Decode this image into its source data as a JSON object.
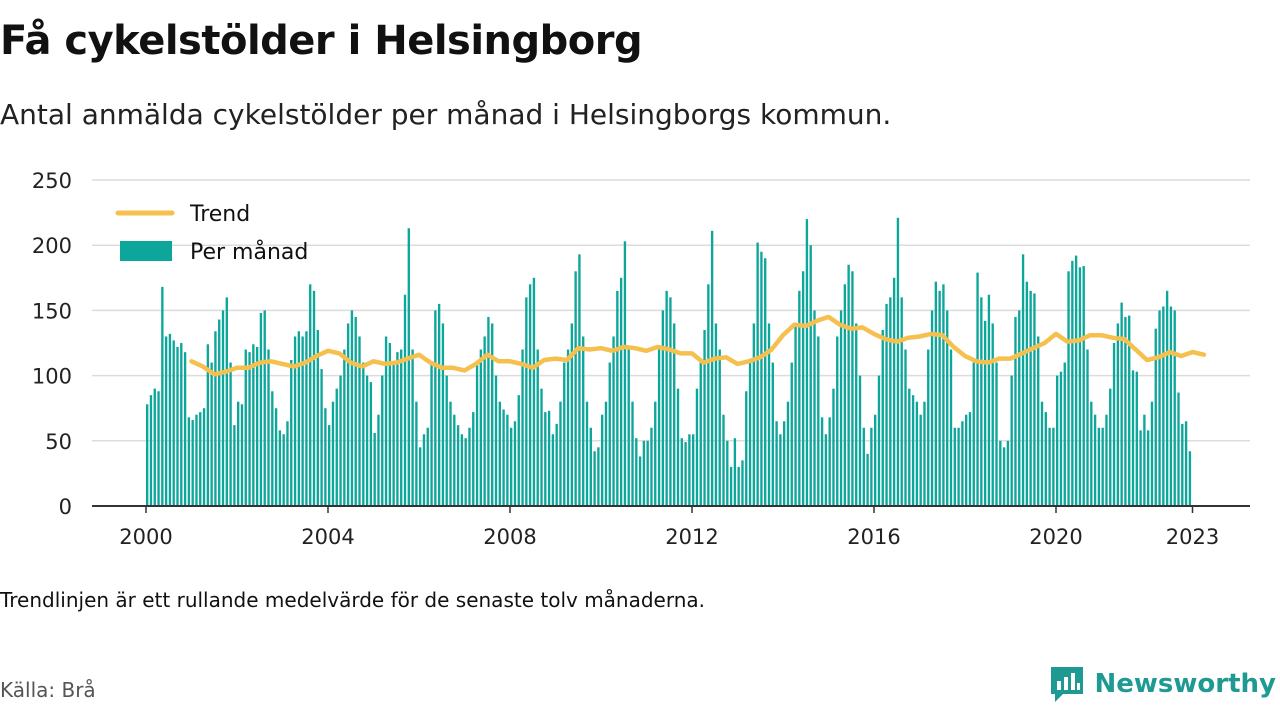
{
  "title": "Få cykelstölder i Helsingborg",
  "subtitle": "Antal anmälda cykelstölder per månad i Helsingborgs kommun.",
  "note": "Trendlinjen är ett rullande medelvärde för de senaste tolv månaderna.",
  "source": "Källa: Brå",
  "brand": {
    "name": "Newsworthy",
    "icon": "newsworthy-logo-icon"
  },
  "colors": {
    "bars": "#0ca69b",
    "trend": "#f5c04e",
    "grid": "#dcdcdc",
    "axis": "#333333",
    "brand": "#1e9a92"
  },
  "chart_data": {
    "type": "bar",
    "grid": true,
    "legend_placement": "top-left",
    "legend": [
      {
        "name": "Trend",
        "kind": "line"
      },
      {
        "name": "Per månad",
        "kind": "bar"
      }
    ],
    "ylim": [
      0,
      250
    ],
    "yticks": [
      0,
      50,
      100,
      150,
      200,
      250
    ],
    "xlim": [
      2000,
      2023.25
    ],
    "xticks": [
      2000,
      2004,
      2008,
      2012,
      2016,
      2020,
      2023
    ],
    "start": "2000-01",
    "series": [
      {
        "name": "Per månad",
        "values": [
          78,
          85,
          90,
          88,
          168,
          130,
          132,
          127,
          122,
          125,
          118,
          68,
          66,
          70,
          72,
          75,
          124,
          110,
          134,
          143,
          150,
          160,
          110,
          62,
          80,
          78,
          120,
          118,
          124,
          122,
          148,
          150,
          120,
          88,
          75,
          58,
          55,
          65,
          112,
          130,
          134,
          130,
          134,
          170,
          165,
          135,
          105,
          75,
          62,
          80,
          90,
          100,
          120,
          140,
          150,
          145,
          130,
          110,
          100,
          95,
          56,
          70,
          100,
          130,
          125,
          110,
          118,
          120,
          162,
          213,
          120,
          80,
          45,
          55,
          60,
          110,
          150,
          155,
          140,
          100,
          80,
          70,
          62,
          55,
          52,
          60,
          72,
          110,
          120,
          130,
          145,
          140,
          100,
          80,
          74,
          70,
          60,
          65,
          85,
          120,
          160,
          170,
          175,
          120,
          90,
          72,
          73,
          55,
          63,
          80,
          110,
          120,
          140,
          180,
          193,
          130,
          80,
          60,
          42,
          45,
          70,
          80,
          110,
          130,
          165,
          175,
          203,
          120,
          80,
          52,
          38,
          50,
          50,
          60,
          80,
          120,
          150,
          165,
          160,
          140,
          90,
          52,
          49,
          55,
          55,
          90,
          110,
          135,
          170,
          211,
          140,
          120,
          70,
          50,
          30,
          52,
          30,
          35,
          88,
          110,
          140,
          202,
          195,
          190,
          140,
          110,
          65,
          55,
          65,
          80,
          110,
          140,
          165,
          180,
          220,
          200,
          150,
          130,
          68,
          55,
          68,
          90,
          130,
          150,
          170,
          185,
          180,
          140,
          100,
          60,
          40,
          60,
          70,
          100,
          135,
          155,
          160,
          175,
          221,
          160,
          120,
          90,
          85,
          80,
          70,
          80,
          120,
          150,
          172,
          165,
          170,
          150,
          120,
          60,
          60,
          65,
          70,
          72,
          110,
          179,
          160,
          142,
          162,
          140,
          110,
          50,
          45,
          50,
          100,
          145,
          150,
          193,
          172,
          165,
          163,
          130,
          80,
          72,
          60,
          60,
          100,
          103,
          110,
          180,
          188,
          192,
          183,
          184,
          120,
          80,
          70,
          60,
          60,
          70,
          90,
          125,
          140,
          156,
          145,
          146,
          104,
          103,
          58,
          70,
          58,
          80,
          136,
          150,
          153,
          165,
          153,
          150,
          87,
          63,
          65,
          42
        ]
      },
      {
        "name": "Trend",
        "points": [
          [
            2001.0,
            111
          ],
          [
            2001.25,
            107
          ],
          [
            2001.5,
            101
          ],
          [
            2001.75,
            103
          ],
          [
            2002.0,
            106
          ],
          [
            2002.25,
            106
          ],
          [
            2002.5,
            110
          ],
          [
            2002.75,
            111
          ],
          [
            2003.0,
            109
          ],
          [
            2003.25,
            107
          ],
          [
            2003.5,
            110
          ],
          [
            2003.75,
            115
          ],
          [
            2004.0,
            119
          ],
          [
            2004.25,
            117
          ],
          [
            2004.5,
            110
          ],
          [
            2004.75,
            107
          ],
          [
            2005.0,
            111
          ],
          [
            2005.25,
            109
          ],
          [
            2005.5,
            110
          ],
          [
            2005.75,
            113
          ],
          [
            2006.0,
            116
          ],
          [
            2006.25,
            110
          ],
          [
            2006.5,
            106
          ],
          [
            2006.75,
            106
          ],
          [
            2007.0,
            104
          ],
          [
            2007.25,
            109
          ],
          [
            2007.5,
            116
          ],
          [
            2007.75,
            111
          ],
          [
            2008.0,
            111
          ],
          [
            2008.25,
            109
          ],
          [
            2008.5,
            106
          ],
          [
            2008.75,
            112
          ],
          [
            2009.0,
            113
          ],
          [
            2009.25,
            112
          ],
          [
            2009.5,
            121
          ],
          [
            2009.75,
            120
          ],
          [
            2010.0,
            121
          ],
          [
            2010.25,
            119
          ],
          [
            2010.5,
            122
          ],
          [
            2010.75,
            121
          ],
          [
            2011.0,
            119
          ],
          [
            2011.25,
            122
          ],
          [
            2011.5,
            120
          ],
          [
            2011.75,
            117
          ],
          [
            2012.0,
            117
          ],
          [
            2012.25,
            110
          ],
          [
            2012.5,
            113
          ],
          [
            2012.75,
            114
          ],
          [
            2013.0,
            109
          ],
          [
            2013.25,
            111
          ],
          [
            2013.5,
            114
          ],
          [
            2013.75,
            120
          ],
          [
            2014.0,
            131
          ],
          [
            2014.25,
            139
          ],
          [
            2014.5,
            138
          ],
          [
            2014.75,
            142
          ],
          [
            2015.0,
            145
          ],
          [
            2015.25,
            139
          ],
          [
            2015.5,
            136
          ],
          [
            2015.75,
            137
          ],
          [
            2016.0,
            132
          ],
          [
            2016.25,
            128
          ],
          [
            2016.5,
            126
          ],
          [
            2016.75,
            129
          ],
          [
            2017.0,
            130
          ],
          [
            2017.25,
            132
          ],
          [
            2017.5,
            131
          ],
          [
            2017.75,
            122
          ],
          [
            2018.0,
            115
          ],
          [
            2018.25,
            111
          ],
          [
            2018.5,
            110
          ],
          [
            2018.75,
            113
          ],
          [
            2019.0,
            113
          ],
          [
            2019.25,
            117
          ],
          [
            2019.5,
            121
          ],
          [
            2019.75,
            125
          ],
          [
            2020.0,
            132
          ],
          [
            2020.25,
            126
          ],
          [
            2020.5,
            127
          ],
          [
            2020.75,
            131
          ],
          [
            2021.0,
            131
          ],
          [
            2021.25,
            129
          ],
          [
            2021.5,
            128
          ],
          [
            2021.75,
            120
          ],
          [
            2022.0,
            112
          ],
          [
            2022.25,
            114
          ],
          [
            2022.5,
            118
          ],
          [
            2022.75,
            115
          ],
          [
            2023.0,
            118
          ],
          [
            2023.25,
            116
          ]
        ]
      }
    ]
  }
}
